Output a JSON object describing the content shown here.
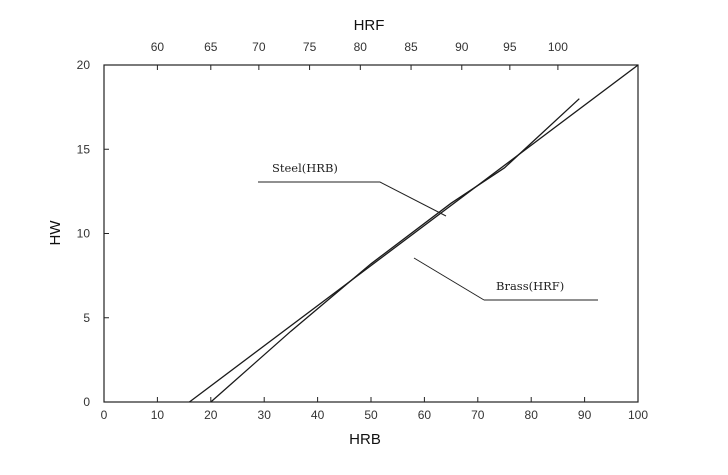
{
  "chart_data": {
    "type": "line",
    "title": "",
    "xlabel": "HRB",
    "ylabel": "HW",
    "top_axis_label": "HRF",
    "xlim": [
      0,
      100
    ],
    "ylim": [
      0,
      20
    ],
    "x_ticks": [
      "0",
      "10",
      "20",
      "30",
      "40",
      "50",
      "60",
      "70",
      "80",
      "90",
      "100"
    ],
    "y_ticks": [
      "0",
      "5",
      "10",
      "15",
      "20"
    ],
    "top_ticks": [
      {
        "label": "60",
        "hrb": 10
      },
      {
        "label": "65",
        "hrb": 20
      },
      {
        "label": "70",
        "hrb": 29
      },
      {
        "label": "75",
        "hrb": 38.5
      },
      {
        "label": "80",
        "hrb": 48
      },
      {
        "label": "85",
        "hrb": 57.5
      },
      {
        "label": "90",
        "hrb": 67
      },
      {
        "label": "95",
        "hrb": 76
      },
      {
        "label": "100",
        "hrb": 85
      }
    ],
    "series": [
      {
        "name": "Steel(HRB)",
        "x": [
          16,
          100
        ],
        "y": [
          0,
          20
        ]
      },
      {
        "name": "Brass(HRF)",
        "x": [
          20,
          35,
          50,
          65,
          75,
          89
        ],
        "y": [
          0,
          4.2,
          8.2,
          11.8,
          13.9,
          18
        ]
      }
    ],
    "annotations": [
      {
        "text": "Steel(HRB)",
        "target_series": 0
      },
      {
        "text": "Brass(HRF)",
        "target_series": 1
      }
    ],
    "grid": false,
    "legend": "none"
  }
}
